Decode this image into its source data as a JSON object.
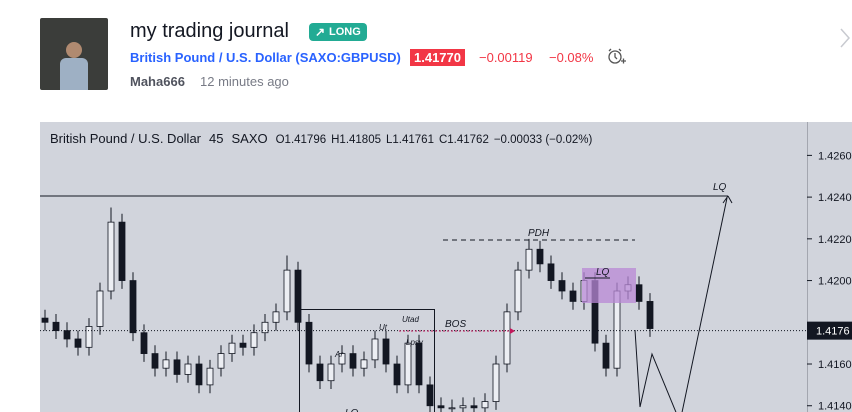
{
  "header": {
    "title": "my trading journal",
    "badge": "LONG",
    "symbol_name": "British Pound / U.S. Dollar",
    "symbol_code": "(SAXO:GBPUSD)",
    "price": "1.41770",
    "change": "−0.00119",
    "change_percent": "−0.08%",
    "author": "Maha666",
    "time": "12 minutes ago"
  },
  "chart_data": {
    "type": "candlestick",
    "legend": {
      "symbol": "British Pound / U.S. Dollar",
      "interval": "45",
      "exchange": "SAXO",
      "open": "O1.41796",
      "high": "H1.41805",
      "low": "L1.41761",
      "close": "C1.41762",
      "change": "−0.00033 (−0.02%)"
    },
    "open": [
      1.4182,
      1.418,
      1.4176,
      1.4172,
      1.4168,
      1.4178,
      1.4195,
      1.4228,
      1.42,
      1.4175,
      1.4165,
      1.4158,
      1.4162,
      1.4155,
      1.416,
      1.415,
      1.4158,
      1.4165,
      1.417,
      1.4168,
      1.4175,
      1.418,
      1.4185,
      1.4205,
      1.418,
      1.416,
      1.4152,
      1.416,
      1.4165,
      1.4158,
      1.4162,
      1.4172,
      1.416,
      1.415,
      1.417,
      1.415,
      1.414,
      1.4139,
      1.4139,
      1.414,
      1.4139,
      1.4142,
      1.416,
      1.4185,
      1.4205,
      1.4215,
      1.4208,
      1.42,
      1.4195,
      1.419,
      1.42,
      1.417,
      1.4158,
      1.4195,
      1.4198,
      1.419
    ],
    "high": [
      1.4186,
      1.4184,
      1.418,
      1.4176,
      1.4182,
      1.4199,
      1.4235,
      1.4232,
      1.4204,
      1.4179,
      1.4169,
      1.4166,
      1.4166,
      1.4164,
      1.4164,
      1.4162,
      1.4169,
      1.4174,
      1.4174,
      1.4179,
      1.4184,
      1.4189,
      1.4212,
      1.4209,
      1.4184,
      1.4164,
      1.4164,
      1.4169,
      1.4169,
      1.4166,
      1.4176,
      1.4176,
      1.4164,
      1.4174,
      1.4174,
      1.4154,
      1.4144,
      1.4143,
      1.4144,
      1.4144,
      1.4146,
      1.4164,
      1.4189,
      1.4209,
      1.422,
      1.4219,
      1.4212,
      1.4204,
      1.4199,
      1.4204,
      1.4204,
      1.4174,
      1.4199,
      1.4202,
      1.4202,
      1.4194
    ],
    "low": [
      1.4176,
      1.4172,
      1.4168,
      1.4164,
      1.4164,
      1.4174,
      1.4191,
      1.4196,
      1.4171,
      1.4161,
      1.4154,
      1.4154,
      1.4151,
      1.4151,
      1.4146,
      1.4146,
      1.4154,
      1.4161,
      1.4164,
      1.4164,
      1.4171,
      1.4176,
      1.4181,
      1.4176,
      1.4156,
      1.4148,
      1.4148,
      1.4156,
      1.4154,
      1.4154,
      1.4158,
      1.4156,
      1.4146,
      1.4146,
      1.4146,
      1.4136,
      1.4135,
      1.4135,
      1.4135,
      1.4135,
      1.4135,
      1.4138,
      1.4156,
      1.4181,
      1.4201,
      1.4204,
      1.4196,
      1.4191,
      1.4186,
      1.4186,
      1.4166,
      1.4154,
      1.4154,
      1.4191,
      1.4186,
      1.4173
    ],
    "close": [
      1.418,
      1.4176,
      1.4172,
      1.4168,
      1.4178,
      1.4195,
      1.4228,
      1.42,
      1.4175,
      1.4165,
      1.4158,
      1.4162,
      1.4155,
      1.416,
      1.415,
      1.4158,
      1.4165,
      1.417,
      1.4168,
      1.4175,
      1.418,
      1.4185,
      1.4205,
      1.418,
      1.416,
      1.4152,
      1.416,
      1.4165,
      1.4158,
      1.4162,
      1.4172,
      1.416,
      1.415,
      1.417,
      1.415,
      1.414,
      1.4139,
      1.4139,
      1.414,
      1.4139,
      1.4142,
      1.416,
      1.4185,
      1.4205,
      1.4215,
      1.4208,
      1.42,
      1.4195,
      1.419,
      1.42,
      1.417,
      1.4158,
      1.4195,
      1.4198,
      1.419,
      1.4177
    ],
    "ylim": [
      1.4137,
      1.4276
    ],
    "yticks": [
      {
        "value": 1.426,
        "label": "1.4260"
      },
      {
        "value": 1.424,
        "label": "1.4240"
      },
      {
        "value": 1.422,
        "label": "1.4220"
      },
      {
        "value": 1.42,
        "label": "1.4200"
      },
      {
        "value": 1.416,
        "label": "1.4160"
      },
      {
        "value": 1.414,
        "label": "1.4140"
      }
    ],
    "last_price": {
      "value": 1.4176,
      "label": "1.4176"
    },
    "up_color": "#eceef3",
    "down_color": "#131722",
    "annotations": [
      "LQ",
      "PDH",
      "BOS",
      "LQ",
      "Ut",
      "Utad",
      "Ar",
      "Lpsy",
      "LQ"
    ]
  }
}
